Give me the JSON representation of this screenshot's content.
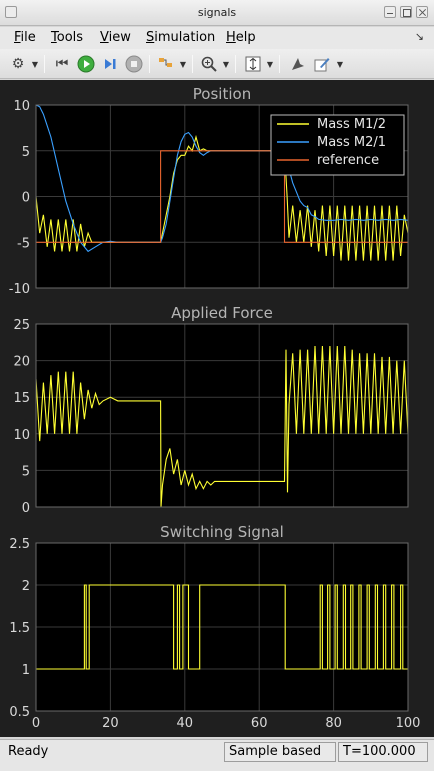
{
  "window": {
    "title": "signals"
  },
  "menu": [
    {
      "label": "File",
      "key": "F"
    },
    {
      "label": "Tools",
      "key": "T"
    },
    {
      "label": "View",
      "key": "V"
    },
    {
      "label": "Simulation",
      "key": "S"
    },
    {
      "label": "Help",
      "key": "H"
    }
  ],
  "toolbar": {
    "icons": [
      "gear-icon",
      "step-back-icon",
      "run-icon",
      "step-forward-icon",
      "stop-icon",
      "sample-time-icon",
      "zoom-icon",
      "autoscale-icon",
      "highlight-icon",
      "write-icon"
    ]
  },
  "status": {
    "ready": "Ready",
    "mode": "Sample based",
    "time": "T=100.000"
  },
  "colors": {
    "axes_bg": "#000000",
    "figure_bg": "#1f1f1f",
    "grid": "#3a3a3a",
    "tick_text": "#d9d9d9",
    "title_text": "#b5b5b5",
    "yellow": "#ffff33",
    "blue": "#3aa0ff",
    "orange": "#e8642e"
  },
  "chart_data": [
    {
      "type": "line",
      "title": "Position",
      "xlim": [
        0,
        100
      ],
      "ylim": [
        -10,
        10
      ],
      "yticks": [
        -10,
        -5,
        0,
        5,
        10
      ],
      "xticks": [
        0,
        20,
        40,
        60,
        80,
        100
      ],
      "grid": true,
      "legend_position": "top-right",
      "series": [
        {
          "name": "Mass M1/2",
          "color": "#ffff33",
          "x": [
            0,
            1,
            2,
            3,
            4,
            5,
            6,
            7,
            8,
            9,
            10,
            11,
            12,
            13,
            14,
            15,
            16,
            18,
            20,
            22,
            24,
            26,
            28,
            30,
            32,
            33.5,
            34,
            35,
            36,
            37,
            38,
            39,
            40,
            41,
            42,
            43,
            44,
            45,
            46,
            48,
            50,
            52,
            54,
            56,
            58,
            60,
            62,
            64,
            66,
            66.8,
            67.5,
            68,
            69,
            70,
            71,
            72,
            73,
            74,
            75,
            76,
            77,
            78,
            79,
            80,
            81,
            82,
            83,
            84,
            85,
            86,
            87,
            88,
            89,
            90,
            91,
            92,
            93,
            94,
            95,
            96,
            97,
            98,
            99,
            100
          ],
          "y": [
            0,
            -4,
            -2,
            -5.5,
            -2.5,
            -6,
            -2.5,
            -6,
            -2.5,
            -6,
            -2.5,
            -6,
            -3,
            -5.5,
            -4,
            -5,
            -5,
            -5,
            -5,
            -5,
            -5,
            -5,
            -5,
            -5,
            -5,
            -5,
            -4,
            -2,
            0,
            2.5,
            4,
            4.5,
            4.5,
            5.5,
            5,
            6.5,
            5,
            5.2,
            5,
            5,
            5,
            5,
            5,
            5,
            5,
            5,
            5,
            5,
            5,
            5,
            0,
            -4.5,
            -1,
            -5,
            -1.5,
            -5,
            -1,
            -5.5,
            -1.5,
            -6,
            -1,
            -6.5,
            -1,
            -6.5,
            -1,
            -7,
            -1,
            -7,
            -1,
            -7,
            -1,
            -7,
            -1,
            -7,
            -1,
            -7,
            -1,
            -7,
            -1,
            -7,
            -1,
            -6.5,
            -2,
            -4
          ]
        },
        {
          "name": "Mass M2/1",
          "color": "#3aa0ff",
          "x": [
            0,
            1,
            2,
            4,
            6,
            8,
            10,
            12,
            14,
            16,
            18,
            20,
            22,
            24,
            26,
            28,
            30,
            32,
            33.5,
            34,
            35,
            36,
            37,
            38,
            39,
            40,
            41,
            42,
            43,
            44,
            45,
            46,
            47,
            48,
            50,
            52,
            54,
            56,
            58,
            60,
            62,
            64,
            66,
            66.8,
            67,
            68,
            69,
            70,
            71,
            72,
            73,
            74,
            75,
            76,
            78,
            80,
            82,
            84,
            86,
            88,
            90,
            92,
            94,
            96,
            98,
            100
          ],
          "y": [
            10,
            9.8,
            9,
            6.5,
            3,
            -0.5,
            -3,
            -5,
            -6,
            -5.5,
            -5,
            -4.9,
            -5,
            -5,
            -5,
            -5,
            -5,
            -5,
            -5,
            -4.5,
            -3,
            -0.5,
            2,
            4.5,
            6,
            6.8,
            7,
            6.5,
            5.5,
            4.8,
            4.5,
            4.8,
            5,
            5,
            5,
            5,
            5,
            5,
            5,
            5,
            5,
            5,
            5,
            5,
            4.5,
            3,
            1.5,
            0.5,
            -0.5,
            -1,
            -1.2,
            -2,
            -2.2,
            -2.5,
            -2.6,
            -2.6,
            -2.5,
            -2.6,
            -2.5,
            -2.6,
            -2.5,
            -2.6,
            -2.5,
            -2.6,
            -2.5,
            -2.6
          ]
        },
        {
          "name": "reference",
          "color": "#e8642e",
          "x": [
            0,
            33.5,
            33.5,
            66.8,
            66.8,
            100
          ],
          "y": [
            -5,
            -5,
            5,
            5,
            -5,
            -5
          ]
        }
      ]
    },
    {
      "type": "line",
      "title": "Applied Force",
      "xlim": [
        0,
        100
      ],
      "ylim": [
        0,
        25
      ],
      "yticks": [
        0,
        5,
        10,
        15,
        20,
        25
      ],
      "xticks": [
        0,
        20,
        40,
        60,
        80,
        100
      ],
      "grid": true,
      "series": [
        {
          "color": "#ffff33",
          "x": [
            0,
            1,
            2,
            3,
            4,
            5,
            6,
            7,
            8,
            9,
            10,
            11,
            12,
            13,
            14,
            15,
            16,
            17,
            18,
            20,
            22,
            24,
            26,
            28,
            30,
            32,
            33.5,
            33.6,
            34,
            35,
            36,
            37,
            38,
            39,
            40,
            41,
            42,
            43,
            44,
            45,
            46,
            47,
            48,
            50,
            52,
            54,
            56,
            58,
            60,
            62,
            64,
            66,
            66.8,
            67.2,
            67.6,
            68,
            69,
            70,
            71,
            72,
            73,
            74,
            75,
            76,
            77,
            78,
            79,
            80,
            81,
            82,
            83,
            84,
            85,
            86,
            87,
            88,
            89,
            90,
            91,
            92,
            93,
            94,
            95,
            96,
            97,
            98,
            99,
            100
          ],
          "y": [
            17.5,
            9,
            17,
            10,
            18,
            10,
            18.5,
            10,
            18.5,
            10,
            18.5,
            10,
            17,
            12,
            16,
            13.5,
            15.5,
            14,
            14.5,
            15,
            14.5,
            14.5,
            14.5,
            14.5,
            14.5,
            14.5,
            14.5,
            0,
            3,
            6.5,
            8,
            4.5,
            6.5,
            3,
            5,
            3,
            4.5,
            2.5,
            3.5,
            2.5,
            3.5,
            3,
            3.5,
            3.5,
            3.5,
            3.5,
            3.5,
            3.5,
            3.5,
            3.5,
            3.5,
            3.5,
            3.5,
            21.5,
            2,
            14,
            21,
            10,
            21.5,
            10,
            21.5,
            10,
            22,
            10,
            22,
            10,
            22,
            10,
            22,
            10,
            22,
            10,
            21.5,
            10,
            21,
            10,
            21,
            10,
            21,
            10,
            20.5,
            10,
            20.5,
            10,
            20,
            10,
            20,
            10
          ]
        }
      ]
    },
    {
      "type": "line",
      "title": "Switching Signal",
      "xlim": [
        0,
        100
      ],
      "ylim": [
        0.5,
        2.5
      ],
      "yticks": [
        0.5,
        1,
        1.5,
        2,
        2.5
      ],
      "xticks": [
        0,
        20,
        40,
        60,
        80,
        100
      ],
      "grid": true,
      "series": [
        {
          "color": "#ffff33",
          "x": [
            0,
            13,
            13,
            13.5,
            13.5,
            14.3,
            14.3,
            15,
            15,
            37,
            37,
            38,
            38,
            38.6,
            38.6,
            39.5,
            39.5,
            41,
            41,
            44,
            44,
            44.6,
            44.6,
            67,
            67,
            76.4,
            76.4,
            77,
            77,
            78.4,
            78.4,
            79,
            79,
            80.4,
            80.4,
            81,
            81,
            82.6,
            82.6,
            83.2,
            83.2,
            84.6,
            84.6,
            85.2,
            85.2,
            86.8,
            86.8,
            87.4,
            87.4,
            89,
            89,
            89.6,
            89.6,
            91.2,
            91.2,
            91.8,
            91.8,
            93.4,
            93.4,
            94,
            94,
            95.6,
            95.6,
            96.2,
            96.2,
            98,
            98,
            98.6,
            98.6,
            100
          ],
          "y": [
            1,
            1,
            2,
            2,
            1,
            1,
            2,
            2,
            2,
            2,
            1,
            1,
            2,
            2,
            1,
            1,
            2,
            2,
            1,
            1,
            2,
            2,
            2,
            2,
            1,
            1,
            2,
            2,
            1,
            1,
            2,
            2,
            1,
            1,
            2,
            2,
            1,
            1,
            2,
            2,
            1,
            1,
            2,
            2,
            1,
            1,
            2,
            2,
            1,
            1,
            2,
            2,
            1,
            1,
            2,
            2,
            1,
            1,
            2,
            2,
            1,
            1,
            2,
            2,
            1,
            1,
            2,
            2,
            1,
            1
          ]
        }
      ]
    }
  ]
}
